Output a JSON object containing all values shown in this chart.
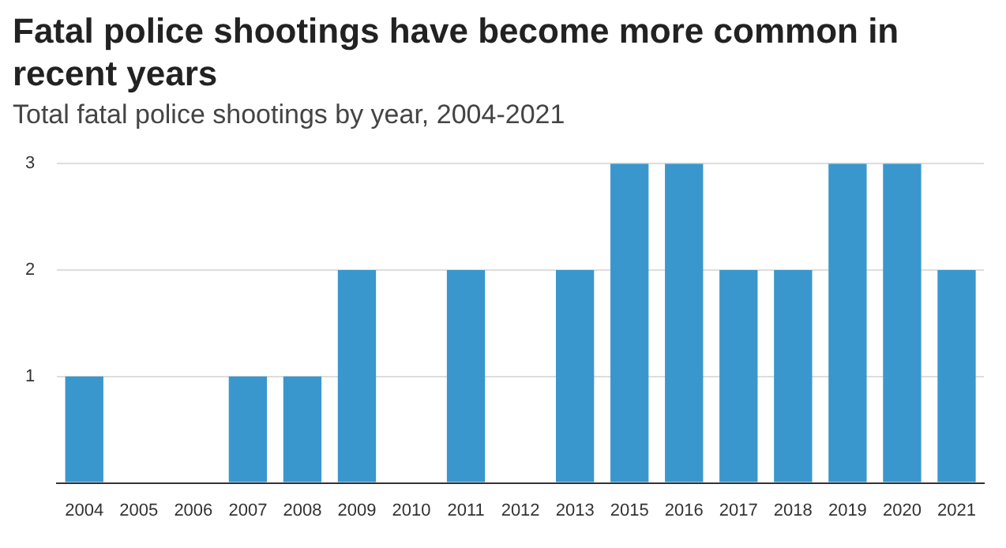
{
  "chart_data": {
    "type": "bar",
    "title": "Fatal police shootings have become more common in recent years",
    "subtitle": "Total fatal police shootings by year, 2004-2021",
    "categories": [
      "2004",
      "2005",
      "2006",
      "2007",
      "2008",
      "2009",
      "2010",
      "2011",
      "2012",
      "2013",
      "2015",
      "2016",
      "2017",
      "2018",
      "2019",
      "2020",
      "2021"
    ],
    "values": [
      1,
      0,
      0,
      1,
      1,
      2,
      0,
      2,
      0,
      2,
      3,
      3,
      2,
      2,
      3,
      3,
      2
    ],
    "color": "#3a97cd",
    "ylim": [
      0,
      3
    ],
    "yticks": [
      {
        "value": 0,
        "label": null
      },
      1,
      2,
      3
    ],
    "grid": "y",
    "legend": false
  }
}
